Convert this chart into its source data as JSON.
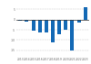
{
  "categories": [
    "2013",
    "2014",
    "2015",
    "2016",
    "2017",
    "2018",
    "2019",
    "2020",
    "2021",
    "2022",
    "2023"
  ],
  "values": [
    -0.7,
    -1.2,
    -5.5,
    -6.5,
    -6.5,
    -11.0,
    -7.2,
    -5.0,
    -15.0,
    -1.3,
    6.0
  ],
  "bar_color": "#1469b5",
  "background_color": "#ffffff",
  "ylim": [
    -18,
    8
  ],
  "grid_color": "#c8c8c8",
  "zero_line_color": "#333333",
  "tick_color": "#666666",
  "tick_fontsize": 2.2,
  "yticks": [
    -15,
    -10,
    -5,
    0,
    5
  ],
  "bar_width": 0.55
}
